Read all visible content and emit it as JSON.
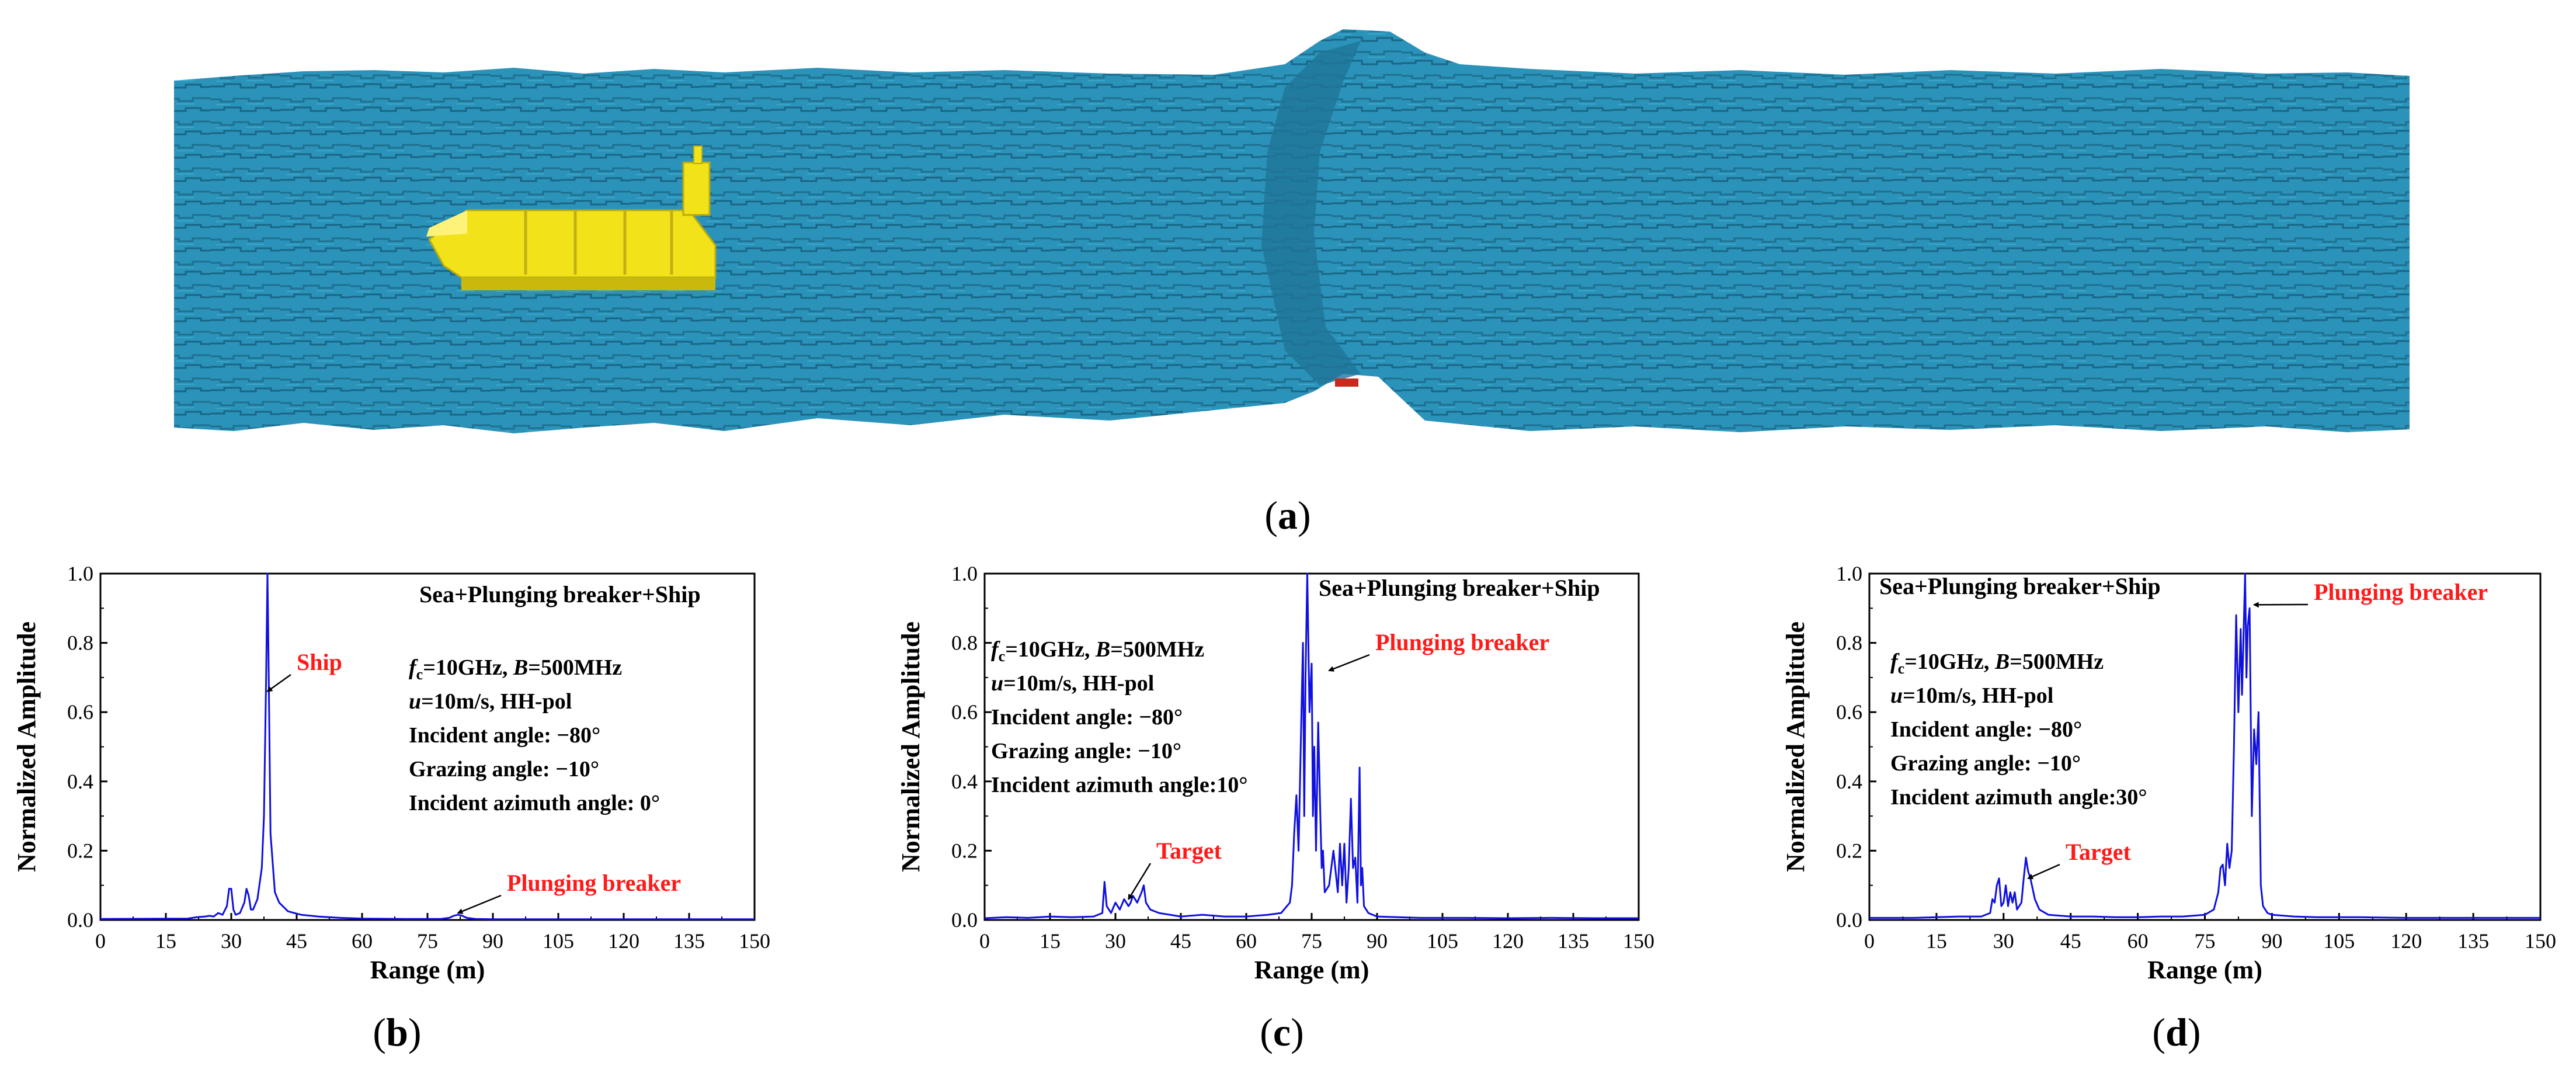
{
  "figure": {
    "panel_labels": [
      "a",
      "b",
      "c",
      "d"
    ],
    "sea_color": "#2b93ba",
    "ship_color": "#f2e21a",
    "series_color": "#1010e0",
    "annotation_color": "#ff1a1a"
  },
  "panels": [
    {
      "label": "b",
      "title": "Sea+Plunging breaker+Ship",
      "params": {
        "fc_label": "f",
        "fc_sub": "c",
        "fc_value": "=10GHz, ",
        "b_label": "B",
        "b_value": "=500MHz",
        "u_label": "u",
        "u_value": "=10m/s, HH-pol",
        "line3": "Incident angle: −80°",
        "line4": "Grazing angle: −10°",
        "line5": "Incident azimuth angle: 0°"
      }
    },
    {
      "label": "c",
      "title": "Sea+Plunging breaker+Ship",
      "params": {
        "fc_label": "f",
        "fc_sub": "c",
        "fc_value": "=10GHz, ",
        "b_label": "B",
        "b_value": "=500MHz",
        "u_label": "u",
        "u_value": "=10m/s, HH-pol",
        "line3": "Incident angle: −80°",
        "line4": "Grazing angle: −10°",
        "line5": "Incident azimuth angle:10°"
      }
    },
    {
      "label": "d",
      "title": "Sea+Plunging breaker+Ship",
      "params": {
        "fc_label": "f",
        "fc_sub": "c",
        "fc_value": "=10GHz, ",
        "b_label": "B",
        "b_value": "=500MHz",
        "u_label": "u",
        "u_value": "=10m/s, HH-pol",
        "line3": "Incident angle: −80°",
        "line4": "Grazing angle: −10°",
        "line5": "Incident azimuth angle:30°"
      }
    }
  ],
  "chart_data": [
    {
      "panel": "b",
      "type": "line",
      "xlabel": "Range (m)",
      "ylabel": "Normalized Amplitude",
      "xlim": [
        0,
        150
      ],
      "ylim": [
        0,
        1.0
      ],
      "xticks": [
        "0",
        "15",
        "30",
        "45",
        "60",
        "75",
        "90",
        "105",
        "120",
        "135",
        "150"
      ],
      "yticks": [
        "0.0",
        "0.2",
        "0.4",
        "0.6",
        "0.8",
        "1.0"
      ],
      "annotations": [
        {
          "text": "Ship",
          "arrow_to": [
            38.3,
            0.66
          ]
        },
        {
          "text": "Plunging breaker",
          "arrow_to": [
            82,
            0.02
          ]
        }
      ],
      "series": [
        {
          "name": "HH-pol",
          "x": [
            0,
            20,
            22,
            24,
            25,
            26,
            27,
            28,
            29,
            29.5,
            30,
            30.5,
            31,
            32,
            33,
            33.5,
            34,
            34.5,
            35,
            36,
            37,
            37.5,
            38,
            38.3,
            38.6,
            39,
            40,
            41,
            43,
            46,
            50,
            55,
            60,
            70,
            78,
            80,
            81,
            82,
            83,
            84,
            86,
            90,
            100,
            120,
            150
          ],
          "y": [
            0.003,
            0.004,
            0.008,
            0.01,
            0.012,
            0.01,
            0.02,
            0.015,
            0.04,
            0.09,
            0.09,
            0.03,
            0.015,
            0.02,
            0.05,
            0.09,
            0.07,
            0.03,
            0.03,
            0.06,
            0.15,
            0.3,
            0.7,
            1.0,
            0.7,
            0.25,
            0.08,
            0.05,
            0.025,
            0.015,
            0.01,
            0.006,
            0.004,
            0.003,
            0.003,
            0.006,
            0.012,
            0.015,
            0.012,
            0.006,
            0.003,
            0.002,
            0.002,
            0.002,
            0.002
          ]
        }
      ]
    },
    {
      "panel": "c",
      "type": "line",
      "xlabel": "Range (m)",
      "ylabel": "Normalized Amplitude",
      "xlim": [
        0,
        150
      ],
      "ylim": [
        0,
        1.0
      ],
      "xticks": [
        "0",
        "15",
        "30",
        "45",
        "60",
        "75",
        "90",
        "105",
        "120",
        "135",
        "150"
      ],
      "yticks": [
        "0.0",
        "0.2",
        "0.4",
        "0.6",
        "0.8",
        "1.0"
      ],
      "annotations": [
        {
          "text": "Plunging breaker",
          "arrow_to": [
            79,
            0.72
          ]
        },
        {
          "text": "Target",
          "arrow_to": [
            33,
            0.06
          ]
        }
      ],
      "series": [
        {
          "name": "HH-pol",
          "x": [
            0,
            5,
            10,
            15,
            20,
            25,
            27,
            27.5,
            28,
            28.5,
            29,
            30,
            31,
            32,
            33,
            33.5,
            34,
            35,
            36,
            36.5,
            37,
            38,
            40,
            45,
            50,
            55,
            60,
            65,
            68,
            70,
            70.5,
            71,
            71.5,
            72,
            72.5,
            73,
            73.3,
            73.6,
            74,
            74.5,
            75,
            75.3,
            75.6,
            76,
            76.5,
            77,
            77.3,
            77.6,
            78,
            79,
            80,
            81,
            81.5,
            82,
            82.5,
            83,
            83.5,
            84,
            84.5,
            85,
            85.5,
            86,
            86.3,
            86.6,
            87,
            88,
            89,
            90,
            95,
            100,
            110,
            120,
            130,
            140,
            150
          ],
          "y": [
            0.005,
            0.008,
            0.006,
            0.01,
            0.008,
            0.01,
            0.02,
            0.11,
            0.04,
            0.03,
            0.02,
            0.05,
            0.03,
            0.06,
            0.04,
            0.05,
            0.07,
            0.05,
            0.08,
            0.1,
            0.05,
            0.03,
            0.02,
            0.01,
            0.015,
            0.01,
            0.01,
            0.015,
            0.02,
            0.05,
            0.1,
            0.25,
            0.36,
            0.2,
            0.5,
            0.8,
            0.3,
            0.7,
            1.0,
            0.6,
            0.74,
            0.3,
            0.5,
            0.2,
            0.57,
            0.3,
            0.15,
            0.2,
            0.08,
            0.1,
            0.2,
            0.08,
            0.22,
            0.1,
            0.22,
            0.05,
            0.15,
            0.35,
            0.15,
            0.18,
            0.05,
            0.44,
            0.1,
            0.15,
            0.04,
            0.02,
            0.015,
            0.01,
            0.008,
            0.006,
            0.006,
            0.005,
            0.006,
            0.005,
            0.005
          ]
        }
      ]
    },
    {
      "panel": "d",
      "type": "line",
      "xlabel": "Range (m)",
      "ylabel": "Normalized Amplitude",
      "xlim": [
        0,
        150
      ],
      "ylim": [
        0,
        1.0
      ],
      "xticks": [
        "0",
        "15",
        "30",
        "45",
        "60",
        "75",
        "90",
        "105",
        "120",
        "135",
        "150"
      ],
      "yticks": [
        "0.0",
        "0.2",
        "0.4",
        "0.6",
        "0.8",
        "1.0"
      ],
      "annotations": [
        {
          "text": "Plunging breaker",
          "arrow_to": [
            86,
            0.91
          ]
        },
        {
          "text": "Target",
          "arrow_to": [
            35.5,
            0.12
          ]
        }
      ],
      "series": [
        {
          "name": "HH-pol",
          "x": [
            0,
            5,
            10,
            15,
            20,
            25,
            27,
            27.5,
            28,
            28.5,
            29,
            29.5,
            30,
            30.5,
            31,
            31.5,
            32,
            32.5,
            33,
            34,
            34.5,
            35,
            35.5,
            36,
            37,
            38,
            40,
            45,
            50,
            55,
            60,
            65,
            70,
            75,
            77,
            78,
            78.5,
            79,
            79.5,
            80,
            80.5,
            81,
            81.5,
            82,
            82.5,
            83,
            83.3,
            83.6,
            84,
            84.3,
            84.6,
            85,
            85.5,
            86,
            86.5,
            87,
            87.5,
            88,
            89,
            90,
            95,
            100,
            110,
            120,
            130,
            140,
            150
          ],
          "y": [
            0.006,
            0.006,
            0.006,
            0.008,
            0.01,
            0.01,
            0.02,
            0.06,
            0.05,
            0.1,
            0.12,
            0.04,
            0.05,
            0.1,
            0.04,
            0.08,
            0.05,
            0.08,
            0.03,
            0.05,
            0.12,
            0.18,
            0.14,
            0.12,
            0.06,
            0.03,
            0.015,
            0.01,
            0.01,
            0.008,
            0.008,
            0.01,
            0.01,
            0.015,
            0.03,
            0.08,
            0.15,
            0.16,
            0.1,
            0.22,
            0.15,
            0.2,
            0.5,
            0.88,
            0.6,
            0.84,
            0.65,
            0.8,
            1.0,
            0.7,
            0.85,
            0.9,
            0.3,
            0.55,
            0.45,
            0.6,
            0.1,
            0.04,
            0.02,
            0.015,
            0.01,
            0.008,
            0.008,
            0.006,
            0.006,
            0.006,
            0.006
          ]
        }
      ]
    }
  ]
}
